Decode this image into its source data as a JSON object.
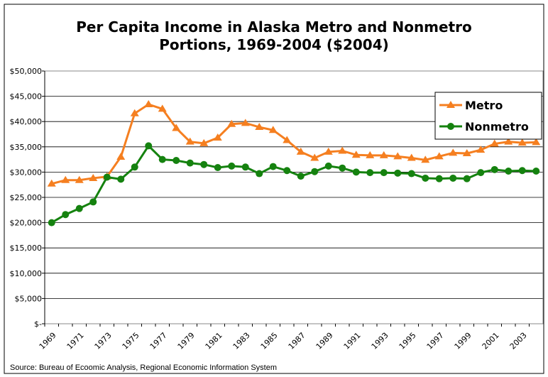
{
  "chart_data": {
    "type": "line",
    "title": "Per Capita Income in Alaska Metro and Nonmetro Portions, 1969-2004 ($2004)",
    "source": "Source: Bureau of Ecoomic Analysis, Regional Economic Information System",
    "categories": [
      "1969",
      null,
      "1971",
      null,
      "1973",
      null,
      "1975",
      null,
      "1977",
      null,
      "1979",
      null,
      "1981",
      null,
      "1983",
      null,
      "1985",
      null,
      "1987",
      null,
      "1989",
      null,
      "1991",
      null,
      "1993",
      null,
      "1995",
      null,
      "1997",
      null,
      "1999",
      null,
      "2001",
      null,
      "2003",
      null
    ],
    "series": [
      {
        "name": "Metro",
        "color": "#f57f20",
        "marker": "triangle",
        "values": [
          27700,
          28400,
          28400,
          28800,
          29100,
          33000,
          41600,
          43400,
          42500,
          38700,
          36000,
          35700,
          36800,
          39500,
          39700,
          38900,
          38300,
          36300,
          34000,
          32800,
          34000,
          34200,
          33400,
          33300,
          33300,
          33100,
          32800,
          32400,
          33100,
          33800,
          33700,
          34400,
          35600,
          36000,
          35800,
          35900
        ]
      },
      {
        "name": "Nonmetro",
        "color": "#15820f",
        "marker": "circle",
        "values": [
          20000,
          21600,
          22800,
          24100,
          29000,
          28600,
          31000,
          35200,
          32500,
          32300,
          31800,
          31500,
          30900,
          31200,
          31000,
          29700,
          31100,
          30300,
          29200,
          30100,
          31200,
          30800,
          30000,
          29900,
          29900,
          29800,
          29700,
          28800,
          28700,
          28800,
          28700,
          29900,
          30500,
          30200,
          30300,
          30200
        ]
      }
    ],
    "ylim": [
      0,
      50000
    ],
    "yticks": [
      {
        "value": 0,
        "label": "$-"
      },
      {
        "value": 5000,
        "label": "$5,000"
      },
      {
        "value": 10000,
        "label": "$10,000"
      },
      {
        "value": 15000,
        "label": "$15,000"
      },
      {
        "value": 20000,
        "label": "$20,000"
      },
      {
        "value": 25000,
        "label": "$25,000"
      },
      {
        "value": 30000,
        "label": "$30,000"
      },
      {
        "value": 35000,
        "label": "$35,000"
      },
      {
        "value": 40000,
        "label": "$40,000"
      },
      {
        "value": 45000,
        "label": "$45,000"
      },
      {
        "value": 50000,
        "label": "$50,000"
      }
    ],
    "grid": true,
    "legend": "upper right"
  }
}
